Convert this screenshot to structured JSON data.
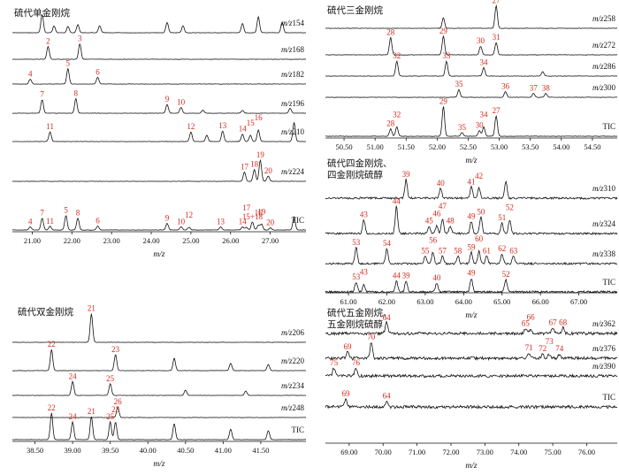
{
  "colors": {
    "trace": "#111111",
    "peak_label": "#d42a1e",
    "arrow": "#d42a1e"
  },
  "chart_data": [
    {
      "type": "line",
      "title": "硫代单金刚烷",
      "xlabel": "m/z",
      "xlim": [
        20.5,
        27.9
      ],
      "xticks": [
        "21.00",
        "22.00",
        "23.00",
        "24.00",
        "25.00",
        "26.00",
        "27.00"
      ],
      "xtick_values": [
        21,
        22,
        23,
        24,
        25,
        26,
        27
      ],
      "series": [
        {
          "name": "m/z154",
          "peaks": [
            {
              "label": "",
              "x": 21.25,
              "h": 0.8
            },
            {
              "label": "",
              "x": 21.55,
              "h": 0.3
            },
            {
              "label": "",
              "x": 21.9,
              "h": 0.28
            },
            {
              "label": "",
              "x": 22.15,
              "h": 0.35
            },
            {
              "label": "",
              "x": 22.7,
              "h": 0.3
            },
            {
              "label": "",
              "x": 24.4,
              "h": 0.45
            },
            {
              "label": "",
              "x": 24.8,
              "h": 0.3
            },
            {
              "label": "",
              "x": 26.3,
              "h": 0.4
            },
            {
              "label": "",
              "x": 26.7,
              "h": 0.7
            },
            {
              "label": "",
              "x": 27.3,
              "h": 0.45
            }
          ]
        },
        {
          "name": "m/z168",
          "peaks": [
            {
              "label": "2",
              "x": 21.4,
              "h": 0.65
            },
            {
              "label": "3",
              "x": 22.2,
              "h": 0.8
            }
          ]
        },
        {
          "name": "m/z182",
          "peaks": [
            {
              "label": "4",
              "x": 20.95,
              "h": 0.25
            },
            {
              "label": "5",
              "x": 21.9,
              "h": 0.8
            },
            {
              "label": "6",
              "x": 22.65,
              "h": 0.35
            }
          ]
        },
        {
          "name": "m/z196",
          "peaks": [
            {
              "label": "7",
              "x": 21.25,
              "h": 0.7
            },
            {
              "label": "8",
              "x": 22.1,
              "h": 0.75
            },
            {
              "label": "9",
              "x": 24.4,
              "h": 0.45
            },
            {
              "label": "10",
              "x": 24.75,
              "h": 0.3
            },
            {
              "label": "",
              "x": 25.3,
              "h": 0.15
            },
            {
              "label": "",
              "x": 26.3,
              "h": 0.15
            },
            {
              "label": "",
              "x": 27.5,
              "h": 0.25
            }
          ]
        },
        {
          "name": "m/z210",
          "peaks": [
            {
              "label": "11",
              "x": 21.45,
              "h": 0.45
            },
            {
              "label": "12",
              "x": 25.0,
              "h": 0.45
            },
            {
              "label": "",
              "x": 25.4,
              "h": 0.3
            },
            {
              "label": "13",
              "x": 25.8,
              "h": 0.5
            },
            {
              "label": "14",
              "x": 26.3,
              "h": 0.35
            },
            {
              "label": "15",
              "x": 26.5,
              "h": 0.3
            },
            {
              "label": "16",
              "x": 26.7,
              "h": 0.55
            },
            {
              "label": "",
              "x": 27.6,
              "h": 0.9
            }
          ]
        },
        {
          "name": "m/z224",
          "peaks": [
            {
              "label": "17",
              "x": 26.35,
              "h": 0.35
            },
            {
              "label": "18",
              "x": 26.6,
              "h": 0.45
            },
            {
              "label": "19",
              "x": 26.75,
              "h": 0.8
            },
            {
              "label": "20",
              "x": 26.95,
              "h": 0.2
            }
          ]
        },
        {
          "name": "TIC",
          "peaks": [
            {
              "label": "4",
              "x": 20.95,
              "h": 0.12
            },
            {
              "label": "7",
              "x": 21.25,
              "h": 0.45
            },
            {
              "label": "11",
              "x": 21.45,
              "h": 0.14
            },
            {
              "label": "5",
              "x": 21.85,
              "h": 0.55
            },
            {
              "label": "8",
              "x": 22.15,
              "h": 0.45
            },
            {
              "label": "6",
              "x": 22.65,
              "h": 0.15
            },
            {
              "label": "9",
              "x": 24.4,
              "h": 0.25
            },
            {
              "label": "10",
              "x": 24.75,
              "h": 0.12
            },
            {
              "label": "12",
              "x": 24.95,
              "h": 0.1
            },
            {
              "label": "13",
              "x": 25.75,
              "h": 0.12
            },
            {
              "label": "14",
              "x": 26.3,
              "h": 0.12
            },
            {
              "label": "15+18",
              "x": 26.55,
              "h": 0.3
            },
            {
              "label": "16",
              "x": 26.7,
              "h": 0.18
            },
            {
              "label": "19",
              "x": 26.78,
              "h": 0.22
            },
            {
              "label": "17",
              "x": 26.4,
              "h": 0.1
            },
            {
              "label": "20",
              "x": 27.0,
              "h": 0.08
            },
            {
              "label": "",
              "x": 27.6,
              "h": 0.5
            }
          ]
        }
      ]
    },
    {
      "type": "line",
      "title": "硫代双金刚烷",
      "xlabel": "m/z",
      "xlim": [
        38.2,
        42.1
      ],
      "xticks": [
        "38.50",
        "39.00",
        "39.50",
        "40.00",
        "40.50",
        "41.00",
        "41.50"
      ],
      "xtick_values": [
        38.5,
        39,
        39.5,
        40,
        40.5,
        41,
        41.5
      ],
      "series": [
        {
          "name": "m/z206",
          "peaks": [
            {
              "label": "21",
              "x": 39.25,
              "h": 0.85
            }
          ]
        },
        {
          "name": "m/z220",
          "peaks": [
            {
              "label": "22",
              "x": 38.72,
              "h": 0.85
            },
            {
              "label": "23",
              "x": 39.57,
              "h": 0.65
            },
            {
              "label": "",
              "x": 40.35,
              "h": 0.5
            },
            {
              "label": "",
              "x": 41.1,
              "h": 0.3
            },
            {
              "label": "",
              "x": 41.6,
              "h": 0.25
            }
          ]
        },
        {
          "name": "m/z234",
          "peaks": [
            {
              "label": "24",
              "x": 39.0,
              "h": 0.65
            },
            {
              "label": "25",
              "x": 39.5,
              "h": 0.55
            },
            {
              "label": "",
              "x": 40.5,
              "h": 0.25
            },
            {
              "label": "",
              "x": 41.3,
              "h": 0.2
            }
          ]
        },
        {
          "name": "m/z248",
          "peaks": [
            {
              "label": "26",
              "x": 39.6,
              "h": 0.5
            }
          ]
        },
        {
          "name": "TIC",
          "peaks": [
            {
              "label": "22",
              "x": 38.72,
              "h": 0.75
            },
            {
              "label": "24",
              "x": 39.0,
              "h": 0.5
            },
            {
              "label": "21",
              "x": 39.25,
              "h": 0.65
            },
            {
              "label": "25",
              "x": 39.5,
              "h": 0.5
            },
            {
              "label": "23",
              "x": 39.57,
              "h": 0.5
            },
            {
              "label": "",
              "x": 40.35,
              "h": 0.45
            },
            {
              "label": "",
              "x": 41.1,
              "h": 0.3
            },
            {
              "label": "",
              "x": 41.6,
              "h": 0.25
            }
          ]
        }
      ]
    },
    {
      "type": "line",
      "title": "硫代三金刚烷",
      "xlabel": "m/z",
      "xlim": [
        50.2,
        54.9
      ],
      "xticks": [
        "50.50",
        "51.00",
        "51.50",
        "52.00",
        "52.50",
        "53.00",
        "53.50",
        "54.00",
        "54.50"
      ],
      "xtick_values": [
        50.5,
        51,
        51.5,
        52,
        52.5,
        53,
        53.5,
        54,
        54.5
      ],
      "series": [
        {
          "name": "m/z258",
          "peaks": [
            {
              "label": "",
              "x": 52.1,
              "h": 0.4
            },
            {
              "label": "27",
              "x": 52.95,
              "h": 0.85
            }
          ]
        },
        {
          "name": "m/z272",
          "peaks": [
            {
              "label": "28",
              "x": 51.25,
              "h": 0.7
            },
            {
              "label": "29",
              "x": 52.1,
              "h": 0.75
            },
            {
              "label": "30",
              "x": 52.7,
              "h": 0.35
            },
            {
              "label": "31",
              "x": 52.95,
              "h": 0.5
            }
          ]
        },
        {
          "name": "m/z286",
          "peaks": [
            {
              "label": "32",
              "x": 51.35,
              "h": 0.7
            },
            {
              "label": "33",
              "x": 52.15,
              "h": 0.7
            },
            {
              "label": "34",
              "x": 52.75,
              "h": 0.4
            },
            {
              "label": "",
              "x": 53.7,
              "h": 0.2
            }
          ]
        },
        {
          "name": "m/z300",
          "peaks": [
            {
              "label": "35",
              "x": 52.35,
              "h": 0.4
            },
            {
              "label": "36",
              "x": 53.1,
              "h": 0.3
            },
            {
              "label": "37",
              "x": 53.55,
              "h": 0.2
            },
            {
              "label": "38",
              "x": 53.75,
              "h": 0.2
            }
          ]
        },
        {
          "name": "TIC",
          "peaks": [
            {
              "label": "28",
              "x": 51.25,
              "h": 0.2
            },
            {
              "label": "32",
              "x": 51.35,
              "h": 0.25
            },
            {
              "label": "29",
              "x": 52.1,
              "h": 0.8
            },
            {
              "label": "35",
              "x": 52.4,
              "h": 0.1
            },
            {
              "label": "30",
              "x": 52.68,
              "h": 0.15
            },
            {
              "label": "34",
              "x": 52.75,
              "h": 0.25
            },
            {
              "label": "27",
              "x": 52.95,
              "h": 0.55
            }
          ]
        }
      ]
    },
    {
      "type": "line",
      "title": "硫代四金刚烷、四金刚烷硫醇",
      "xlabel": "m/z",
      "xlim": [
        60.4,
        68.0
      ],
      "xticks": [
        "61.00",
        "62.00",
        "63.00",
        "64.00",
        "65.00",
        "66.00",
        "67.00"
      ],
      "xtick_values": [
        61,
        62,
        63,
        64,
        65,
        66,
        67
      ],
      "series": [
        {
          "name": "m/z310",
          "peaks": [
            {
              "label": "39",
              "x": 62.5,
              "h": 0.75
            },
            {
              "label": "40",
              "x": 63.4,
              "h": 0.4
            },
            {
              "label": "41",
              "x": 64.2,
              "h": 0.45
            },
            {
              "label": "42",
              "x": 64.4,
              "h": 0.4
            },
            {
              "label": "",
              "x": 65.1,
              "h": 0.7
            }
          ]
        },
        {
          "name": "m/z324",
          "peaks": [
            {
              "label": "43",
              "x": 61.4,
              "h": 0.45
            },
            {
              "label": "44",
              "x": 62.25,
              "h": 0.9
            },
            {
              "label": "45",
              "x": 63.1,
              "h": 0.25
            },
            {
              "label": "46",
              "x": 63.3,
              "h": 0.25
            },
            {
              "label": "47",
              "x": 63.45,
              "h": 0.5
            },
            {
              "label": "48",
              "x": 63.65,
              "h": 0.25
            },
            {
              "label": "49",
              "x": 64.2,
              "h": 0.4
            },
            {
              "label": "50",
              "x": 64.45,
              "h": 0.55
            },
            {
              "label": "51",
              "x": 65.0,
              "h": 0.35
            },
            {
              "label": "52",
              "x": 65.2,
              "h": 0.45
            }
          ]
        },
        {
          "name": "m/z338",
          "peaks": [
            {
              "label": "53",
              "x": 61.2,
              "h": 0.65
            },
            {
              "label": "54",
              "x": 62.0,
              "h": 0.6
            },
            {
              "label": "55",
              "x": 63.0,
              "h": 0.3
            },
            {
              "label": "56",
              "x": 63.2,
              "h": 0.45
            },
            {
              "label": "57",
              "x": 63.45,
              "h": 0.3
            },
            {
              "label": "58",
              "x": 63.85,
              "h": 0.3
            },
            {
              "label": "59",
              "x": 64.2,
              "h": 0.45
            },
            {
              "label": "60",
              "x": 64.4,
              "h": 0.5
            },
            {
              "label": "61",
              "x": 64.6,
              "h": 0.3
            },
            {
              "label": "62",
              "x": 65.0,
              "h": 0.4
            },
            {
              "label": "63",
              "x": 65.3,
              "h": 0.3
            }
          ]
        },
        {
          "name": "TIC",
          "peaks": [
            {
              "label": "53",
              "x": 61.2,
              "h": 0.4
            },
            {
              "label": "43",
              "x": 61.4,
              "h": 0.3
            },
            {
              "label": "44",
              "x": 62.25,
              "h": 0.45
            },
            {
              "label": "39",
              "x": 62.5,
              "h": 0.45
            },
            {
              "label": "40",
              "x": 63.3,
              "h": 0.35
            },
            {
              "label": "49",
              "x": 64.2,
              "h": 0.55
            },
            {
              "label": "52",
              "x": 65.1,
              "h": 0.5
            }
          ]
        }
      ]
    },
    {
      "type": "line",
      "title": "硫代五金刚烷、五金刚烷硫醇",
      "xlabel": "m/z",
      "xlim": [
        68.3,
        76.9
      ],
      "xticks": [
        "69.00",
        "70.00",
        "71.00",
        "72.00",
        "73.00",
        "74.00",
        "75.00",
        "76.00"
      ],
      "xtick_values": [
        69,
        70,
        71,
        72,
        73,
        74,
        75,
        76
      ],
      "series": [
        {
          "name": "m/z362",
          "peaks": [
            {
              "label": "64",
              "x": 70.1,
              "h": 0.55
            },
            {
              "label": "65",
              "x": 74.2,
              "h": 0.25
            },
            {
              "label": "66",
              "x": 74.35,
              "h": 0.2
            },
            {
              "label": "67",
              "x": 75.0,
              "h": 0.3
            },
            {
              "label": "68",
              "x": 75.3,
              "h": 0.3
            }
          ]
        },
        {
          "name": "m/z376",
          "peaks": [
            {
              "label": "69",
              "x": 68.95,
              "h": 0.3
            },
            {
              "label": "70",
              "x": 69.65,
              "h": 0.75
            },
            {
              "label": "71",
              "x": 74.3,
              "h": 0.25
            },
            {
              "label": "72",
              "x": 74.7,
              "h": 0.2
            },
            {
              "label": "73",
              "x": 74.9,
              "h": 0.2
            },
            {
              "label": "74",
              "x": 75.2,
              "h": 0.2
            }
          ]
        },
        {
          "name": "m/z390",
          "peaks": [
            {
              "label": "75",
              "x": 68.55,
              "h": 0.45
            },
            {
              "label": "76",
              "x": 69.2,
              "h": 0.45
            }
          ]
        },
        {
          "name": "TIC",
          "peaks": [
            {
              "label": "69",
              "x": 68.9,
              "h": 0.4
            },
            {
              "label": "64",
              "x": 70.1,
              "h": 0.3
            }
          ]
        }
      ]
    }
  ]
}
